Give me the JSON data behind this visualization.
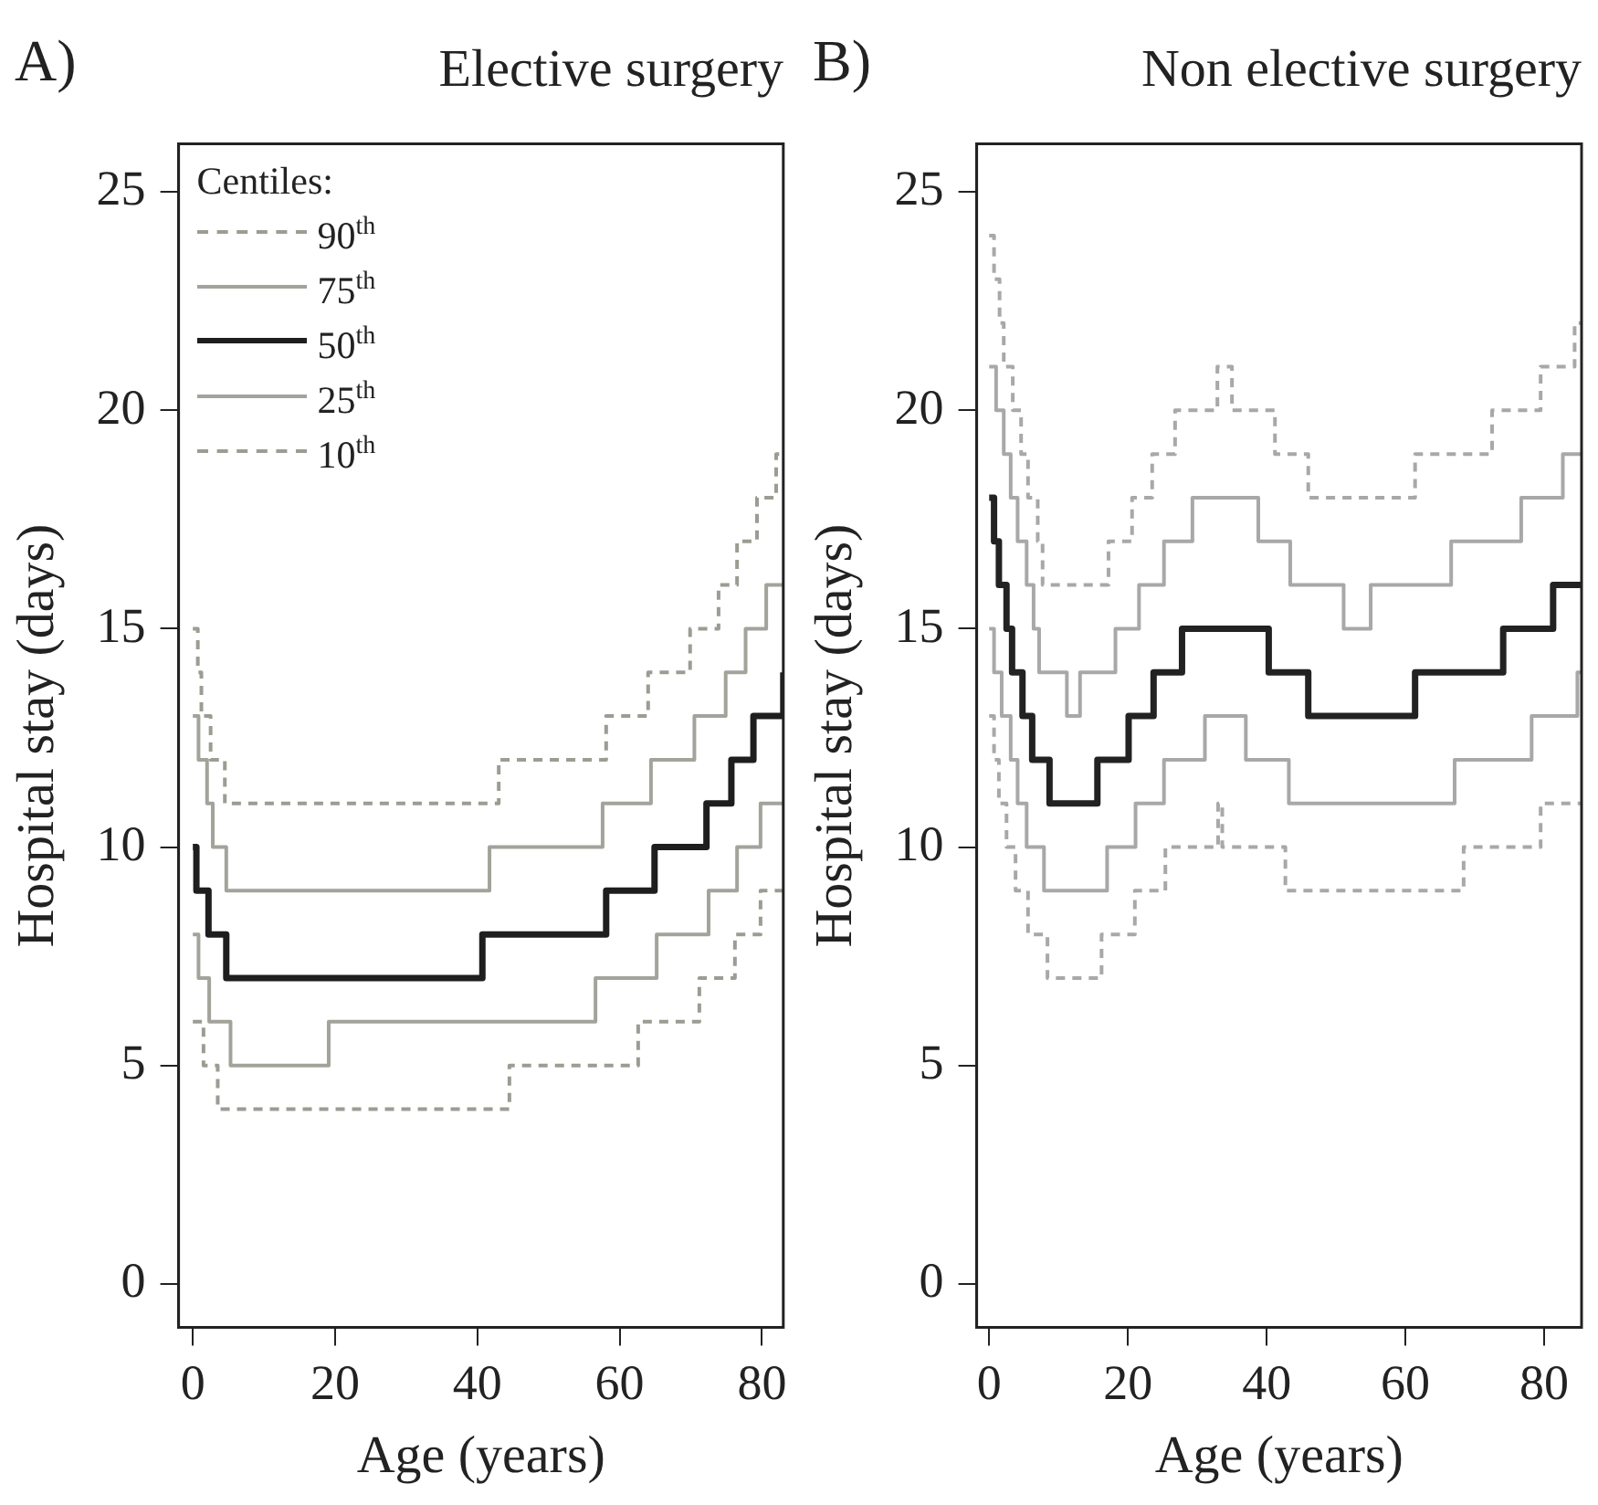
{
  "chart_data": [
    {
      "type": "step",
      "title": "Elective surgery",
      "annotations": [
        "A)"
      ],
      "xlabel": "Age (years)",
      "ylabel": "Hospital stay (days)",
      "legend": "top left",
      "legend_title": "Centiles:",
      "grid": false,
      "xlim": [
        -2,
        83
      ],
      "ylim": [
        -1,
        26.1
      ],
      "xticks": [
        0,
        20,
        40,
        60,
        80
      ],
      "yticks": [
        0,
        5,
        10,
        15,
        20,
        25
      ],
      "series": [
        {
          "name": "90$^{th}$",
          "color": "#9c9c94",
          "line_style": "dashed",
          "x": [
            0,
            0.7,
            1.2,
            2.5,
            4.5,
            43.0,
            58.1,
            64.0,
            69.9,
            73.9,
            76.5,
            79.3,
            82.0,
            83
          ],
          "values": [
            15,
            14,
            13,
            12,
            11,
            12,
            13,
            14,
            15,
            16,
            17,
            18,
            19,
            19
          ]
        },
        {
          "name": "75$^{th}$",
          "color": "#a3a39b",
          "line_style": "solid",
          "x": [
            0,
            0.8,
            2,
            2.8,
            4.7,
            41.7,
            57.6,
            64.4,
            70.5,
            74.9,
            77.7,
            80.6,
            83
          ],
          "values": [
            13,
            12,
            11,
            10,
            9,
            10,
            11,
            12,
            13,
            14,
            15,
            16,
            16
          ]
        },
        {
          "name": "50$^{th}$",
          "color": "#1e1e1e",
          "line_style": "solid",
          "x": [
            0,
            0.5,
            2.2,
            4.7,
            40.7,
            58.1,
            64.9,
            72.2,
            75.7,
            78.8,
            83
          ],
          "values": [
            10,
            9,
            8,
            7,
            8,
            9,
            10,
            11,
            12,
            13,
            14
          ]
        },
        {
          "name": "25$^{th}$",
          "color": "#a3a39b",
          "line_style": "solid",
          "x": [
            0,
            0.8,
            2.3,
            5.3,
            19.1,
            56.6,
            65.2,
            72.5,
            76.5,
            79.8,
            83
          ],
          "values": [
            8,
            7,
            6,
            5,
            6,
            7,
            8,
            9,
            10,
            11,
            11
          ]
        },
        {
          "name": "10$^{th}$",
          "color": "#9c9c94",
          "line_style": "dashed",
          "x": [
            0,
            1.5,
            3.5,
            44.5,
            62.6,
            71.2,
            76.2,
            79.8,
            83
          ],
          "values": [
            6,
            5,
            4,
            5,
            6,
            7,
            8,
            9,
            9
          ]
        }
      ]
    },
    {
      "type": "step",
      "title": "Non elective surgery",
      "annotations": [
        "B)"
      ],
      "xlabel": "Age (years)",
      "ylabel": "Hospital stay (days)",
      "grid": false,
      "xlim": [
        -1.8,
        85.4
      ],
      "ylim": [
        -1,
        26.1
      ],
      "xticks": [
        0,
        20,
        40,
        60,
        80
      ],
      "yticks": [
        0,
        5,
        10,
        15,
        20,
        25
      ],
      "series": [
        {
          "color": "#a8a8a8",
          "line_style": "dashed",
          "x": [
            0,
            0.7,
            1.5,
            2.1,
            3.4,
            4.6,
            5.6,
            7.0,
            7.7,
            17.2,
            20.6,
            23.5,
            26.8,
            32.9,
            35.0,
            41.2,
            46.0,
            61.4,
            72.5,
            79.5,
            84.4,
            85.4
          ],
          "values": [
            24,
            23,
            22,
            21,
            20,
            19,
            18,
            17,
            16,
            17,
            18,
            19,
            20,
            21,
            20,
            19,
            18,
            19,
            20,
            21,
            22,
            22
          ]
        },
        {
          "color": "#a8a8a8",
          "line_style": "solid",
          "x": [
            0,
            1.0,
            2.1,
            3.1,
            4.1,
            5.4,
            6.4,
            7.2,
            11.2,
            13.1,
            18.2,
            21.6,
            25.2,
            29.3,
            38.8,
            43.4,
            51.1,
            55.0,
            66.6,
            76.7,
            82.7,
            85.4
          ],
          "values": [
            21,
            20,
            19,
            18,
            17,
            16,
            15,
            14,
            13,
            14,
            15,
            16,
            17,
            18,
            17,
            16,
            15,
            16,
            17,
            18,
            19,
            19
          ]
        },
        {
          "color": "#222222",
          "line_style": "solid",
          "x": [
            0,
            0.7,
            1.4,
            2.5,
            3.3,
            4.8,
            6.2,
            8.7,
            15.6,
            20.1,
            23.7,
            27.8,
            40.3,
            46.0,
            61.4,
            74.1,
            81.3,
            85.4
          ],
          "values": [
            18,
            17,
            16,
            15,
            14,
            13,
            12,
            11,
            12,
            13,
            14,
            15,
            14,
            13,
            14,
            15,
            16,
            16
          ]
        },
        {
          "color": "#a8a8a8",
          "line_style": "solid",
          "x": [
            0,
            0.7,
            1.8,
            3.1,
            4.1,
            5.4,
            7.9,
            17.0,
            21.1,
            25.2,
            31.1,
            37.0,
            43.2,
            67.1,
            78.2,
            84.8,
            85.4
          ],
          "values": [
            15,
            14,
            13,
            12,
            11,
            10,
            9,
            10,
            11,
            12,
            13,
            12,
            11,
            12,
            13,
            14,
            14
          ]
        },
        {
          "color": "#a8a8a8",
          "line_style": "dashed",
          "x": [
            0,
            0.7,
            1.4,
            2.5,
            3.8,
            5.6,
            8.4,
            16.2,
            21.0,
            25.4,
            33.0,
            33.6,
            42.7,
            68.4,
            79.5,
            85.4
          ],
          "values": [
            13,
            12,
            11,
            10,
            9,
            8,
            7,
            8,
            9,
            10,
            11,
            10,
            9,
            10,
            11,
            11
          ]
        }
      ]
    }
  ]
}
